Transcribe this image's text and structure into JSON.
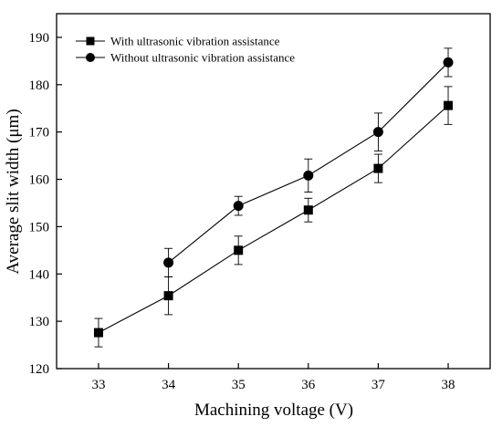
{
  "chart_data": {
    "type": "line",
    "xlabel": "Machining voltage (V)",
    "ylabel": "Average slit width (μm)",
    "xlim": [
      32.4,
      38.6
    ],
    "ylim": [
      120,
      195
    ],
    "x_ticks": [
      33,
      34,
      35,
      36,
      37,
      38
    ],
    "y_ticks": [
      120,
      130,
      140,
      150,
      160,
      170,
      180,
      190
    ],
    "grid": false,
    "legend_position": "top-left",
    "series": [
      {
        "name": "With ultrasonic vibration assistance",
        "marker": "square",
        "x": [
          33,
          34,
          35,
          36,
          37,
          38
        ],
        "y": [
          127.6,
          135.4,
          145.0,
          153.5,
          162.3,
          175.6
        ],
        "error": [
          3.0,
          4.0,
          3.0,
          2.5,
          3.0,
          4.0
        ]
      },
      {
        "name": "Without ultrasonic vibration assistance",
        "marker": "circle",
        "x": [
          34,
          35,
          36,
          37,
          38
        ],
        "y": [
          142.4,
          154.4,
          160.8,
          170.0,
          184.7
        ],
        "error": [
          3.0,
          2.0,
          3.5,
          4.0,
          3.0
        ]
      }
    ]
  }
}
